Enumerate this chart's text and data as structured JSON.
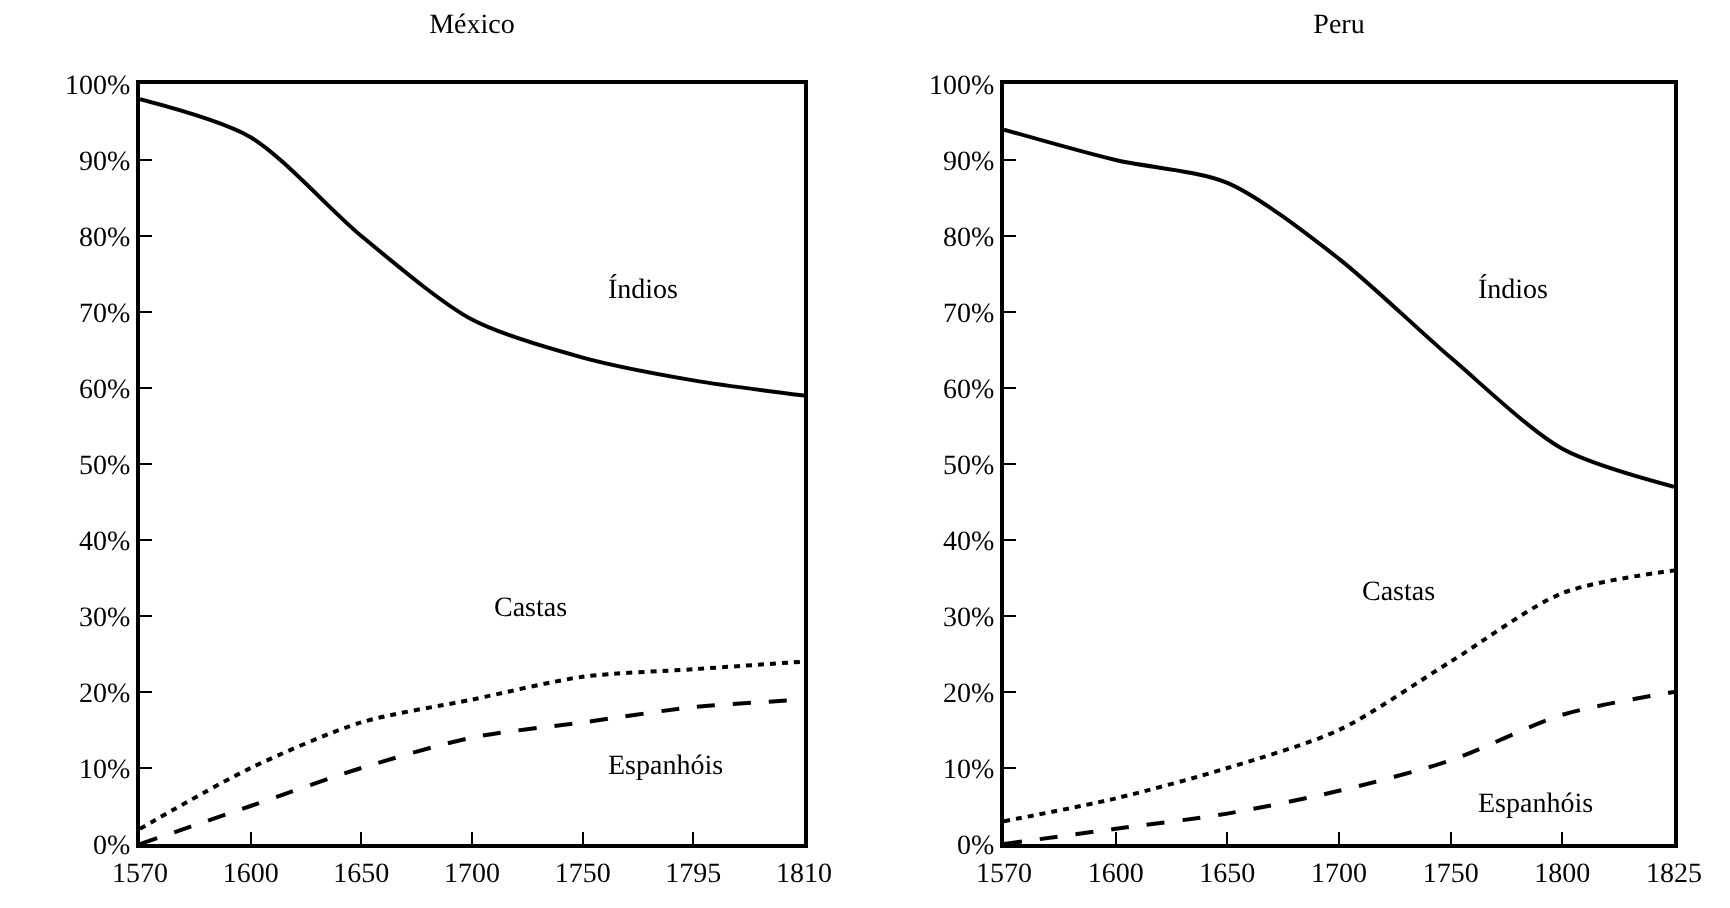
{
  "chart_data": [
    {
      "type": "line",
      "title": "México",
      "categories": [
        "1570",
        "1600",
        "1650",
        "1700",
        "1750",
        "1795",
        "1810"
      ],
      "ylim": [
        0,
        100
      ],
      "yticks": [
        {
          "value": 0,
          "label": "0%"
        },
        {
          "value": 10,
          "label": "10%"
        },
        {
          "value": 20,
          "label": "20%"
        },
        {
          "value": 30,
          "label": "30%"
        },
        {
          "value": 40,
          "label": "40%"
        },
        {
          "value": 50,
          "label": "50%"
        },
        {
          "value": 60,
          "label": "60%"
        },
        {
          "value": 70,
          "label": "70%"
        },
        {
          "value": 80,
          "label": "80%"
        },
        {
          "value": 90,
          "label": "90%"
        },
        {
          "value": 100,
          "label": "100%"
        }
      ],
      "grid": false,
      "legend": false,
      "marker": "none",
      "series": [
        {
          "name": "Índios",
          "color": "#000000",
          "line_style": "solid",
          "values": [
            98,
            93,
            80,
            69,
            64,
            61,
            59
          ]
        },
        {
          "name": "Castas",
          "color": "#000000",
          "line_style": "dotted",
          "values": [
            2,
            10,
            16,
            19,
            22,
            23,
            24
          ]
        },
        {
          "name": "Espanhóis",
          "color": "#000000",
          "line_style": "dashed",
          "values": [
            0,
            5,
            10,
            14,
            16,
            18,
            19
          ]
        }
      ]
    },
    {
      "type": "line",
      "title": "Peru",
      "categories": [
        "1570",
        "1600",
        "1650",
        "1700",
        "1750",
        "1800",
        "1825"
      ],
      "ylim": [
        0,
        100
      ],
      "yticks": [
        {
          "value": 0,
          "label": "0%"
        },
        {
          "value": 10,
          "label": "10%"
        },
        {
          "value": 20,
          "label": "20%"
        },
        {
          "value": 30,
          "label": "30%"
        },
        {
          "value": 40,
          "label": "40%"
        },
        {
          "value": 50,
          "label": "50%"
        },
        {
          "value": 60,
          "label": "60%"
        },
        {
          "value": 70,
          "label": "70%"
        },
        {
          "value": 80,
          "label": "80%"
        },
        {
          "value": 90,
          "label": "90%"
        },
        {
          "value": 100,
          "label": "100%"
        }
      ],
      "grid": false,
      "legend": false,
      "marker": "none",
      "series": [
        {
          "name": "Índios",
          "color": "#000000",
          "line_style": "solid",
          "values": [
            94,
            90,
            87,
            77,
            64,
            52,
            47
          ]
        },
        {
          "name": "Castas",
          "color": "#000000",
          "line_style": "dotted",
          "values": [
            3,
            6,
            10,
            15,
            24,
            33,
            36
          ]
        },
        {
          "name": "Espanhóis",
          "color": "#000000",
          "line_style": "dashed",
          "values": [
            0,
            2,
            4,
            7,
            11,
            17,
            20
          ]
        }
      ]
    }
  ]
}
